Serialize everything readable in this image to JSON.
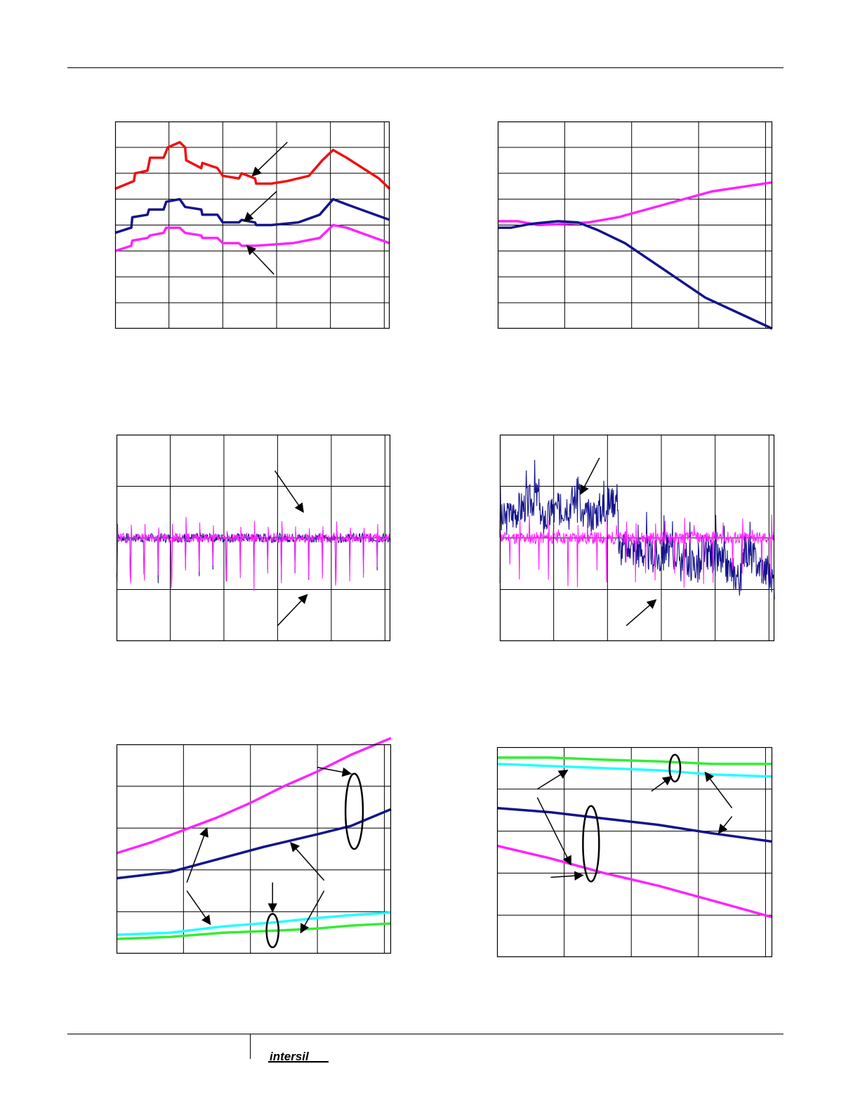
{
  "page": {
    "footer_logo_text": "intersil",
    "colors": {
      "red": "#f01010",
      "navy": "#14148c",
      "magenta": "#ff22ff",
      "cyan": "#22ffff",
      "green": "#33ee33"
    }
  },
  "charts": [
    {
      "id": "c1",
      "type": "line",
      "xlim": [
        0,
        5.1
      ],
      "ylim": [
        0,
        8
      ],
      "xgrid": [
        1,
        2,
        3,
        4,
        5
      ],
      "ygrid": [
        1,
        2,
        3,
        4,
        5,
        6,
        7
      ],
      "series": [
        {
          "color": "red",
          "stroke": 3.5,
          "values": [
            [
              0,
              5.4
            ],
            [
              0.35,
              5.7
            ],
            [
              0.37,
              6.0
            ],
            [
              0.6,
              6.1
            ],
            [
              0.65,
              6.6
            ],
            [
              0.9,
              6.6
            ],
            [
              0.98,
              7.0
            ],
            [
              1.2,
              7.2
            ],
            [
              1.3,
              7.0
            ],
            [
              1.32,
              6.5
            ],
            [
              1.6,
              6.2
            ],
            [
              1.62,
              6.4
            ],
            [
              1.9,
              6.2
            ],
            [
              2.0,
              5.9
            ],
            [
              2.3,
              5.8
            ],
            [
              2.35,
              6.0
            ],
            [
              2.6,
              5.8
            ],
            [
              2.62,
              5.6
            ],
            [
              2.9,
              5.6
            ],
            [
              3.2,
              5.7
            ],
            [
              3.6,
              5.9
            ],
            [
              3.85,
              6.5
            ],
            [
              4.05,
              6.9
            ],
            [
              4.3,
              6.6
            ],
            [
              4.6,
              6.2
            ],
            [
              4.9,
              5.8
            ],
            [
              5.1,
              5.4
            ]
          ]
        },
        {
          "color": "navy",
          "stroke": 3.5,
          "values": [
            [
              0,
              3.7
            ],
            [
              0.3,
              3.9
            ],
            [
              0.32,
              4.3
            ],
            [
              0.6,
              4.4
            ],
            [
              0.63,
              4.6
            ],
            [
              0.9,
              4.6
            ],
            [
              0.95,
              4.9
            ],
            [
              1.2,
              5.0
            ],
            [
              1.3,
              4.7
            ],
            [
              1.6,
              4.6
            ],
            [
              1.62,
              4.4
            ],
            [
              1.9,
              4.4
            ],
            [
              2.0,
              4.1
            ],
            [
              2.3,
              4.1
            ],
            [
              2.35,
              4.2
            ],
            [
              2.6,
              4.1
            ],
            [
              2.62,
              4.0
            ],
            [
              2.9,
              4.0
            ],
            [
              3.4,
              4.1
            ],
            [
              3.8,
              4.4
            ],
            [
              4.05,
              5.0
            ],
            [
              4.3,
              4.8
            ],
            [
              4.7,
              4.5
            ],
            [
              5.1,
              4.2
            ]
          ]
        },
        {
          "color": "magenta",
          "stroke": 3.5,
          "values": [
            [
              0,
              3.0
            ],
            [
              0.3,
              3.2
            ],
            [
              0.32,
              3.4
            ],
            [
              0.6,
              3.5
            ],
            [
              0.65,
              3.6
            ],
            [
              0.9,
              3.7
            ],
            [
              0.95,
              3.9
            ],
            [
              1.2,
              3.9
            ],
            [
              1.3,
              3.7
            ],
            [
              1.6,
              3.6
            ],
            [
              1.62,
              3.5
            ],
            [
              1.9,
              3.5
            ],
            [
              2.0,
              3.3
            ],
            [
              2.3,
              3.3
            ],
            [
              2.35,
              3.2
            ],
            [
              2.6,
              3.2
            ],
            [
              3.3,
              3.3
            ],
            [
              3.8,
              3.5
            ],
            [
              4.05,
              4.0
            ],
            [
              4.3,
              3.9
            ],
            [
              4.7,
              3.6
            ],
            [
              5.1,
              3.3
            ]
          ]
        }
      ],
      "arrows": [
        {
          "tail": [
            3.2,
            7.2
          ],
          "head": [
            2.55,
            5.9
          ]
        },
        {
          "tail": [
            3.0,
            5.3
          ],
          "head": [
            2.4,
            4.15
          ]
        },
        {
          "tail": [
            2.95,
            2.1
          ],
          "head": [
            2.45,
            3.2
          ]
        }
      ]
    },
    {
      "id": "c2",
      "type": "line",
      "xlim": [
        0,
        4.1
      ],
      "ylim": [
        0,
        8
      ],
      "xgrid": [
        1,
        2,
        3,
        4
      ],
      "ygrid": [
        1,
        2,
        3,
        4,
        5,
        6,
        7
      ],
      "series": [
        {
          "color": "magenta",
          "stroke": 3.5,
          "values": [
            [
              0,
              4.15
            ],
            [
              0.3,
              4.15
            ],
            [
              0.6,
              4.0
            ],
            [
              1.0,
              4.05
            ],
            [
              1.35,
              4.1
            ],
            [
              1.8,
              4.3
            ],
            [
              2.5,
              4.8
            ],
            [
              3.2,
              5.3
            ],
            [
              4.1,
              5.65
            ]
          ]
        },
        {
          "color": "navy",
          "stroke": 3.5,
          "values": [
            [
              0,
              3.9
            ],
            [
              0.2,
              3.9
            ],
            [
              0.5,
              4.05
            ],
            [
              0.9,
              4.15
            ],
            [
              1.2,
              4.1
            ],
            [
              1.5,
              3.8
            ],
            [
              1.9,
              3.3
            ],
            [
              2.3,
              2.6
            ],
            [
              2.7,
              1.9
            ],
            [
              3.1,
              1.2
            ],
            [
              3.6,
              0.6
            ],
            [
              4.1,
              0.0
            ]
          ]
        }
      ],
      "arrows": []
    },
    {
      "id": "c3",
      "type": "line",
      "xlim": [
        0,
        5.1
      ],
      "ylim": [
        0,
        4
      ],
      "xgrid": [
        1,
        2,
        3,
        4,
        5
      ],
      "ygrid": [
        1,
        2,
        3
      ],
      "noise": [
        {
          "color": "navy",
          "stroke": 1.1,
          "base": 2.0,
          "amp": 0.09,
          "period": 0.255,
          "spikeDown": 0.85,
          "spikeUp": 0.12,
          "seed": 7,
          "drift": 0
        },
        {
          "color": "magenta",
          "stroke": 1.1,
          "base": 2.0,
          "amp": 0.09,
          "period": 0.255,
          "spikeDown": 0.95,
          "spikeUp": 0.35,
          "seed": 19,
          "drift": 0
        }
      ],
      "arrows": [
        {
          "tail": [
            2.95,
            3.3
          ],
          "head": [
            3.48,
            2.5
          ]
        },
        {
          "tail": [
            3.0,
            0.3
          ],
          "head": [
            3.55,
            0.9
          ]
        }
      ],
      "tick_label_glyph": "'"
    },
    {
      "id": "c4",
      "type": "line",
      "xlim": [
        0,
        5.1
      ],
      "ylim": [
        0,
        4
      ],
      "xgrid": [
        1,
        2,
        3,
        4,
        5
      ],
      "ygrid": [
        1,
        2,
        3
      ],
      "noise": [
        {
          "color": "navy",
          "stroke": 1.1,
          "base": 2.0,
          "amp": 0.35,
          "period": 0.16,
          "spikeDown": 0.25,
          "spikeUp": 0.55,
          "seed": 3,
          "drift": 1
        },
        {
          "color": "magenta",
          "stroke": 1.1,
          "base": 2.0,
          "amp": 0.12,
          "period": 0.18,
          "spikeDown": 0.95,
          "spikeUp": 0.4,
          "seed": 11,
          "drift": 0
        }
      ],
      "arrows": [
        {
          "tail": [
            1.85,
            3.55
          ],
          "head": [
            1.5,
            2.85
          ]
        },
        {
          "tail": [
            2.35,
            0.3
          ],
          "head": [
            2.9,
            0.8
          ]
        }
      ]
    },
    {
      "id": "c5",
      "type": "line",
      "xlim": [
        0,
        4.1
      ],
      "ylim": [
        0,
        5
      ],
      "xgrid": [
        1,
        2,
        3,
        4
      ],
      "ygrid": [
        1,
        2,
        3,
        4
      ],
      "series": [
        {
          "color": "magenta",
          "stroke": 3.5,
          "values": [
            [
              0,
              2.4
            ],
            [
              0.5,
              2.65
            ],
            [
              1.0,
              2.95
            ],
            [
              1.5,
              3.25
            ],
            [
              2.0,
              3.6
            ],
            [
              2.5,
              4.0
            ],
            [
              3.0,
              4.35
            ],
            [
              3.5,
              4.75
            ],
            [
              4.1,
              5.15
            ]
          ]
        },
        {
          "color": "navy",
          "stroke": 3.5,
          "values": [
            [
              0,
              1.8
            ],
            [
              0.8,
              1.95
            ],
            [
              1.5,
              2.25
            ],
            [
              2.2,
              2.55
            ],
            [
              3.0,
              2.85
            ],
            [
              3.5,
              3.05
            ],
            [
              4.1,
              3.45
            ]
          ]
        },
        {
          "color": "cyan",
          "stroke": 3.5,
          "values": [
            [
              0,
              0.45
            ],
            [
              0.8,
              0.5
            ],
            [
              1.6,
              0.65
            ],
            [
              2.4,
              0.75
            ],
            [
              3.0,
              0.85
            ],
            [
              3.5,
              0.92
            ],
            [
              4.1,
              0.98
            ]
          ]
        },
        {
          "color": "green",
          "stroke": 3.5,
          "values": [
            [
              0,
              0.35
            ],
            [
              0.8,
              0.4
            ],
            [
              1.6,
              0.5
            ],
            [
              2.4,
              0.55
            ],
            [
              3.0,
              0.6
            ],
            [
              3.5,
              0.67
            ],
            [
              4.1,
              0.72
            ]
          ]
        }
      ],
      "ellipses": [
        {
          "cx": 3.55,
          "cy": 3.4,
          "rx": 0.13,
          "ry": 0.9
        },
        {
          "cx": 2.33,
          "cy": 0.55,
          "rx": 0.09,
          "ry": 0.4
        }
      ],
      "arrows": [
        {
          "tail": [
            3.0,
            4.45
          ],
          "head": [
            3.5,
            4.3
          ]
        },
        {
          "tail": [
            1.05,
            1.7
          ],
          "head": [
            1.35,
            3.0
          ]
        },
        {
          "tail": [
            1.05,
            1.5
          ],
          "head": [
            1.4,
            0.7
          ]
        },
        {
          "tail": [
            3.1,
            1.75
          ],
          "head": [
            2.6,
            2.65
          ]
        },
        {
          "tail": [
            3.1,
            1.5
          ],
          "head": [
            2.75,
            0.5
          ]
        },
        {
          "tail": [
            2.33,
            1.7
          ],
          "head": [
            2.33,
            1.0
          ]
        }
      ]
    },
    {
      "id": "c6",
      "type": "line",
      "xlim": [
        0,
        4.1
      ],
      "ylim": [
        0,
        5
      ],
      "xgrid": [
        1,
        2,
        3,
        4
      ],
      "ygrid": [
        1,
        2,
        3,
        4
      ],
      "series": [
        {
          "color": "green",
          "stroke": 3.5,
          "values": [
            [
              0,
              4.75
            ],
            [
              0.8,
              4.75
            ],
            [
              1.6,
              4.7
            ],
            [
              2.4,
              4.66
            ],
            [
              3.2,
              4.6
            ],
            [
              4.1,
              4.6
            ]
          ]
        },
        {
          "color": "cyan",
          "stroke": 3.5,
          "values": [
            [
              0,
              4.6
            ],
            [
              0.8,
              4.55
            ],
            [
              1.6,
              4.5
            ],
            [
              2.4,
              4.45
            ],
            [
              3.2,
              4.35
            ],
            [
              4.1,
              4.3
            ]
          ]
        },
        {
          "color": "navy",
          "stroke": 3.5,
          "values": [
            [
              0,
              3.55
            ],
            [
              0.8,
              3.45
            ],
            [
              1.6,
              3.3
            ],
            [
              2.4,
              3.15
            ],
            [
              3.2,
              2.95
            ],
            [
              4.1,
              2.75
            ]
          ]
        },
        {
          "color": "magenta",
          "stroke": 3.5,
          "values": [
            [
              0,
              2.65
            ],
            [
              0.8,
              2.35
            ],
            [
              1.6,
              2.0
            ],
            [
              2.4,
              1.7
            ],
            [
              3.2,
              1.35
            ],
            [
              4.1,
              0.95
            ]
          ]
        }
      ],
      "ellipses": [
        {
          "cx": 1.4,
          "cy": 2.7,
          "rx": 0.12,
          "ry": 0.9
        },
        {
          "cx": 2.65,
          "cy": 4.5,
          "rx": 0.08,
          "ry": 0.32
        }
      ],
      "arrows": [
        {
          "tail": [
            0.6,
            4.0
          ],
          "head": [
            1.05,
            4.45
          ]
        },
        {
          "tail": [
            0.6,
            3.8
          ],
          "head": [
            1.1,
            2.2
          ]
        },
        {
          "tail": [
            0.8,
            1.9
          ],
          "head": [
            1.28,
            1.95
          ]
        },
        {
          "tail": [
            2.3,
            3.95
          ],
          "head": [
            2.6,
            4.3
          ]
        },
        {
          "tail": [
            3.5,
            3.55
          ],
          "head": [
            3.1,
            4.4
          ]
        },
        {
          "tail": [
            3.5,
            3.35
          ],
          "head": [
            3.3,
            2.95
          ]
        }
      ]
    }
  ]
}
